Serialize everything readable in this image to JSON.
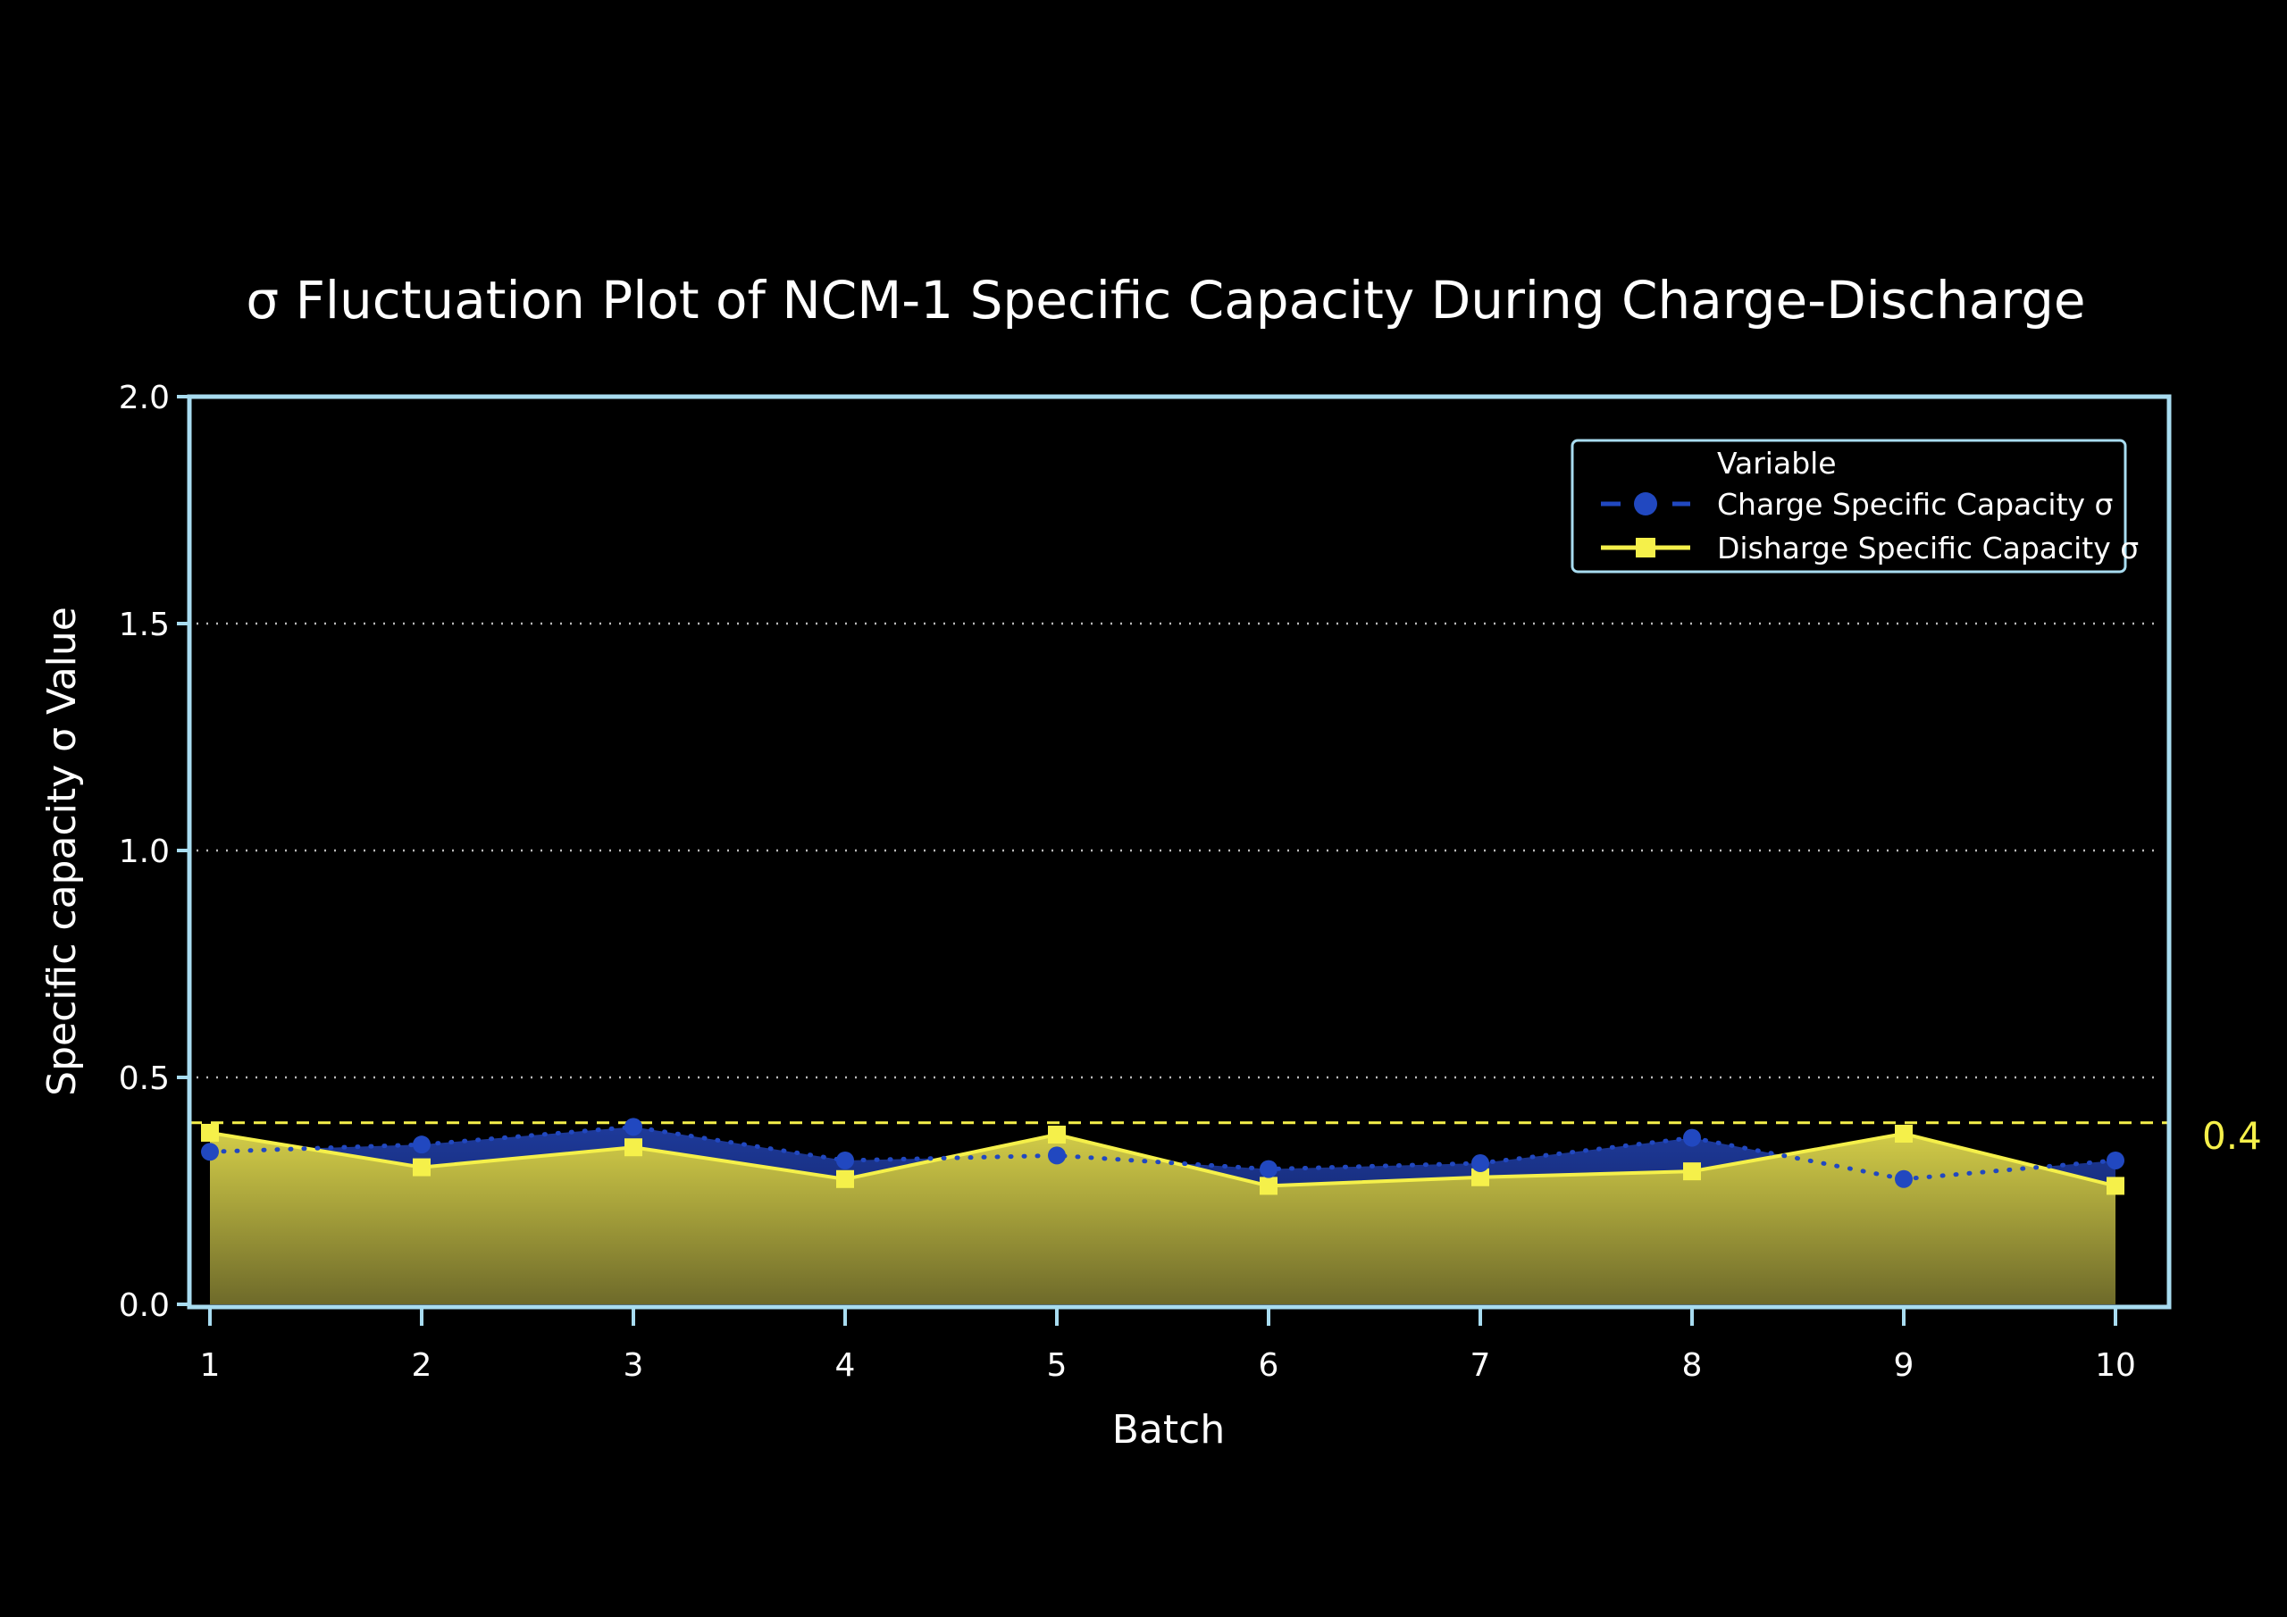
{
  "chart_data": {
    "type": "area",
    "title": "σ Fluctuation Plot of NCM-1 Specific Capacity During Charge-Discharge",
    "xlabel": "Batch",
    "ylabel": "Specific capacity σ Value",
    "categories": [
      1,
      2,
      3,
      4,
      5,
      6,
      7,
      8,
      9,
      10
    ],
    "ylim": [
      0,
      2.0
    ],
    "yticks": [
      "0.0",
      "0.5",
      "1.0",
      "1.5",
      "2.0"
    ],
    "grid": "horizontal dotted",
    "legend": {
      "title": "Variable",
      "placement": "top-right"
    },
    "series": [
      {
        "name": "Charge Specific Capacity σ",
        "color": "#2148c0",
        "marker": "circle",
        "line": "dotted",
        "values": [
          0.336,
          0.352,
          0.391,
          0.317,
          0.328,
          0.298,
          0.311,
          0.367,
          0.276,
          0.317
        ]
      },
      {
        "name": "Disharge Specific Capacity σ",
        "color": "#f5f04a",
        "marker": "square",
        "line": "solid",
        "values": [
          0.378,
          0.302,
          0.346,
          0.276,
          0.374,
          0.261,
          0.28,
          0.293,
          0.376,
          0.261
        ]
      }
    ],
    "reference_line": {
      "value": 0.4,
      "label": "0.4",
      "color": "#f5f04a",
      "style": "dashed"
    },
    "frame_color": "#a8dcf0"
  }
}
